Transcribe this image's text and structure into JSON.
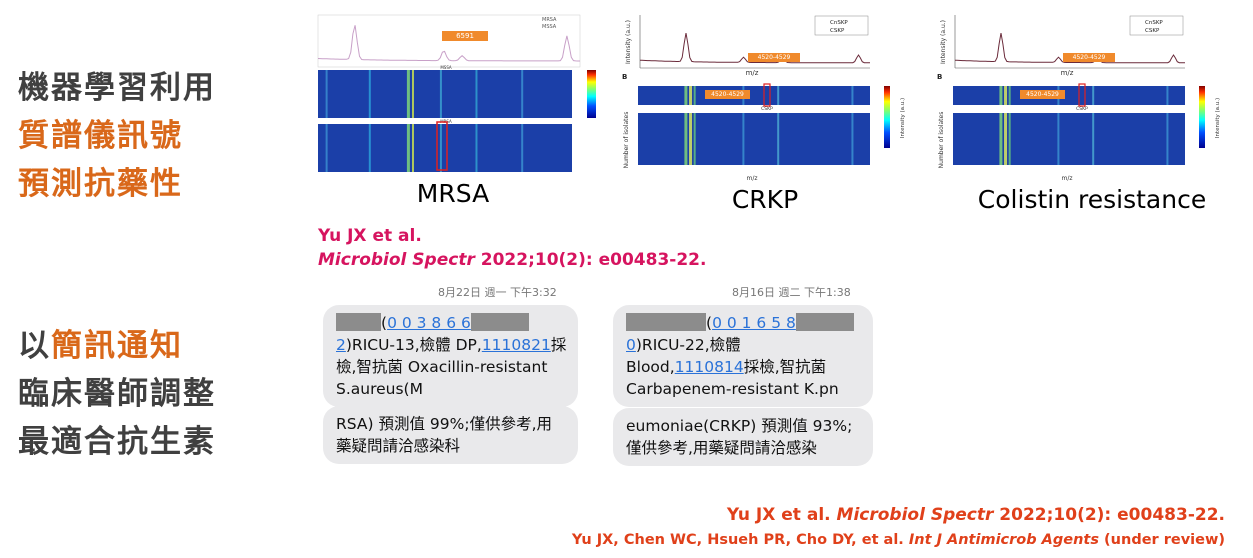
{
  "left_panel": {
    "top": [
      "機器學習利用",
      "質譜儀訊號",
      "預測抗藥性"
    ],
    "bottom": [
      {
        "prefix": "以",
        "accent": "簡訊通知"
      },
      "臨床醫師調整",
      "最適合抗生素"
    ]
  },
  "figures": [
    {
      "caption": "MRSA",
      "legend": [
        "MRSA",
        "MSSA"
      ],
      "peak_label": "6591"
    },
    {
      "caption": "CRKP",
      "legend": [
        "CnSKP",
        "CSKP"
      ],
      "peak_label": "4520-4529",
      "panel": "B",
      "x_axis": "m/z",
      "y_axis": "Intensity (a.u.)",
      "heatmap_y_axis": "Number of isolates"
    },
    {
      "caption": "Colistin resistance",
      "legend": [
        "CnSKP",
        "CSKP"
      ],
      "peak_label": "4520-4529",
      "panel": "B",
      "x_axis": "m/z",
      "y_axis": "Intensity (a.u.)",
      "heatmap_y_axis": "Number of isolates"
    }
  ],
  "citation": {
    "author": "Yu JX et al.",
    "journal": "Microbiol Spectr",
    "details": " 2022;10(2): e00483-22."
  },
  "messages": [
    {
      "timestamp": "8月22日 週一 下午3:32",
      "bubble1": {
        "l0a": "(",
        "l0b": "0 0 3 8 6 6",
        "l1a": "2",
        "l1b": ")RICU-13,檢體 DP,",
        "l1c": "1110821",
        "l1d": "採",
        "l2": "檢,智抗菌 Oxacillin-resistant",
        "l3": "S.aureus(M"
      },
      "bubble2": [
        "RSA) 預測值 99%;僅供參考,用",
        "藥疑問請洽感染科"
      ]
    },
    {
      "timestamp": "8月16日 週二 下午1:38",
      "bubble1": {
        "l0a": "(",
        "l0b": "0 0 1 6 5 8",
        "l1a": "0",
        "l1b": ")RICU-22,檢體",
        "l2a": "Blood,",
        "l2b": "1110814",
        "l2c": "採檢,智抗菌",
        "l3": "Carbapenem-resistant K.pn"
      },
      "bubble2": [
        "eumoniae(CRKP) 預測值 93%;",
        "僅供參考,用藥疑問請洽感染"
      ]
    }
  ],
  "references": [
    {
      "author": "Yu JX et al. ",
      "journal": "Microbiol Spectr",
      "details": " 2022;10(2): e00483-22."
    },
    {
      "author": "Yu JX, Chen WC, Hsueh PR, Cho DY, et al. ",
      "journal": "Int J Antimicrob Agents",
      "details": " (under review)"
    }
  ]
}
